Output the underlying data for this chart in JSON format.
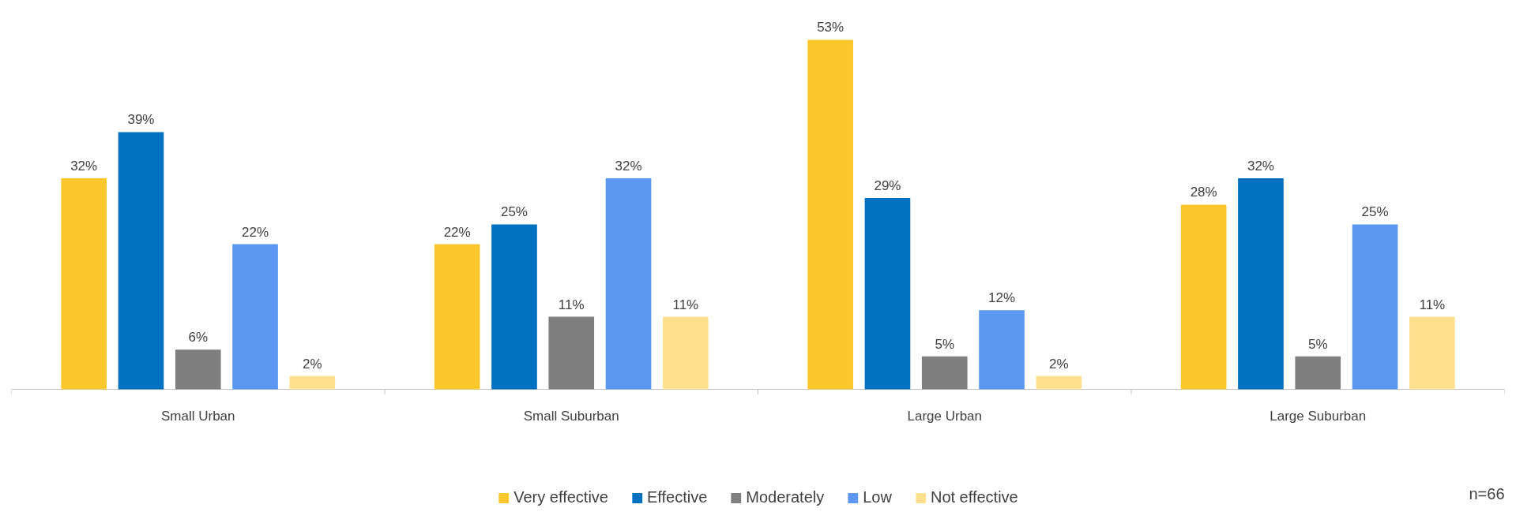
{
  "chart_data": {
    "type": "bar",
    "categories": [
      "Small Urban",
      "Small Suburban",
      "Large Urban",
      "Large Suburban"
    ],
    "series": [
      {
        "name": "Very effective",
        "color": "#fcc72c",
        "values": [
          32,
          22,
          53,
          28
        ],
        "value_labels": [
          "32%",
          "22%",
          "53%",
          "28%"
        ]
      },
      {
        "name": "Effective",
        "color": "#0070c0",
        "values": [
          39,
          25,
          29,
          32
        ],
        "value_labels": [
          "39%",
          "25%",
          "29%",
          "32%"
        ]
      },
      {
        "name": "Moderately",
        "color": "#7f7f7f",
        "values": [
          6,
          11,
          5,
          5
        ],
        "value_labels": [
          "6%",
          "11%",
          "5%",
          "5%"
        ]
      },
      {
        "name": "Low",
        "color": "#5b96f0",
        "values": [
          22,
          32,
          12,
          25
        ],
        "value_labels": [
          "22%",
          "32%",
          "12%",
          "25%"
        ]
      },
      {
        "name": "Not effective",
        "color": "#ffe08f",
        "values": [
          2,
          11,
          2,
          11
        ],
        "value_labels": [
          "2%",
          "11%",
          "2%",
          "11%"
        ]
      }
    ],
    "grid": false,
    "legend": "bottom",
    "annotations": [
      "n=66"
    ]
  }
}
